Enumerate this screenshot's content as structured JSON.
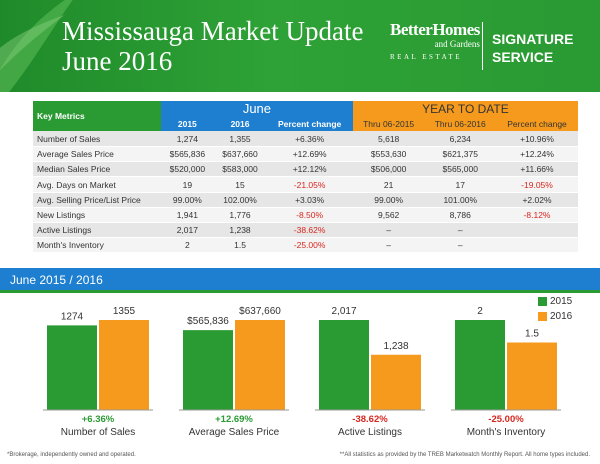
{
  "header": {
    "title_line1": "Mississauga Market Update",
    "title_line2": "June  2016",
    "brand_line1": "Better",
    "brand_line2": "Homes",
    "brand_line3": "and Gardens",
    "brand_line4": "REAL ESTATE",
    "signature_line1": "SIGNATURE",
    "signature_line2": "SERVICE"
  },
  "table": {
    "key_header": "Key Metrics",
    "june_header": "June",
    "ytd_header": "YEAR TO DATE",
    "subheaders": [
      "2015",
      "2016",
      "Percent change",
      "Thru 06-2015",
      "Thru 06-2016",
      "Percent change"
    ],
    "rows": [
      {
        "label": "Number of Sales",
        "cells": [
          "1,274",
          "1,355",
          "+6.36%",
          "5,618",
          "6,234",
          "+10.96%"
        ],
        "neg": [
          false,
          false,
          false,
          false,
          false,
          false
        ]
      },
      {
        "label": "Average Sales Price",
        "cells": [
          "$565,836",
          "$637,660",
          "+12.69%",
          "$553,630",
          "$621,375",
          "+12.24%"
        ],
        "neg": [
          false,
          false,
          false,
          false,
          false,
          false
        ]
      },
      {
        "label": "Median Sales Price",
        "cells": [
          "$520,000",
          "$583,000",
          "+12.12%",
          "$506,000",
          "$565,000",
          "+11.66%"
        ],
        "neg": [
          false,
          false,
          false,
          false,
          false,
          false
        ]
      },
      {
        "label": "Avg. Days on Market",
        "cells": [
          "19",
          "15",
          "-21.05%",
          "21",
          "17",
          "-19.05%"
        ],
        "neg": [
          false,
          false,
          true,
          false,
          false,
          true
        ]
      },
      {
        "label": "Avg. Selling Price/List Price",
        "cells": [
          "99.00%",
          "102.00%",
          "+3.03%",
          "99.00%",
          "101.00%",
          "+2.02%"
        ],
        "neg": [
          false,
          false,
          false,
          false,
          false,
          false
        ]
      },
      {
        "label": "New Listings",
        "cells": [
          "1,941",
          "1,776",
          "-8.50%",
          "9,562",
          "8,786",
          "-8.12%"
        ],
        "neg": [
          false,
          false,
          true,
          false,
          false,
          true
        ]
      },
      {
        "label": "Active Listings",
        "cells": [
          "2,017",
          "1,238",
          "-38.62%",
          "–",
          "–",
          ""
        ],
        "neg": [
          false,
          false,
          true,
          false,
          false,
          false
        ]
      },
      {
        "label": "Month's Inventory",
        "cells": [
          "2",
          "1.5",
          "-25.00%",
          "–",
          "–",
          ""
        ],
        "neg": [
          false,
          false,
          true,
          false,
          false,
          false
        ]
      }
    ]
  },
  "section_title": "June 2015 / 2016",
  "colors": {
    "green": "#2a9a33",
    "orange": "#f59a1c",
    "blue": "#1e7fd0",
    "red": "#d7261e"
  },
  "chart_data": [
    {
      "type": "bar",
      "title": "",
      "categories": [
        "Number of Sales"
      ],
      "series": [
        {
          "name": "2015",
          "values": [
            1274
          ]
        },
        {
          "name": "2016",
          "values": [
            1355
          ]
        }
      ],
      "value_labels": [
        "1274",
        "1355"
      ],
      "change": "+6.36%",
      "change_negative": false
    },
    {
      "type": "bar",
      "title": "",
      "categories": [
        "Average Sales Price"
      ],
      "series": [
        {
          "name": "2015",
          "values": [
            565836
          ]
        },
        {
          "name": "2016",
          "values": [
            637660
          ]
        }
      ],
      "value_labels": [
        "$565,836",
        "$637,660"
      ],
      "change": "+12.69%",
      "change_negative": false
    },
    {
      "type": "bar",
      "title": "",
      "categories": [
        "Active Listings"
      ],
      "series": [
        {
          "name": "2015",
          "values": [
            2017
          ]
        },
        {
          "name": "2016",
          "values": [
            1238
          ]
        }
      ],
      "value_labels": [
        "2,017",
        "1,238"
      ],
      "change": "-38.62%",
      "change_negative": true
    },
    {
      "type": "bar",
      "title": "",
      "categories": [
        "Month's Inventory"
      ],
      "series": [
        {
          "name": "2015",
          "values": [
            2
          ]
        },
        {
          "name": "2016",
          "values": [
            1.5
          ]
        }
      ],
      "value_labels": [
        "2",
        "1.5"
      ],
      "change": "-25.00%",
      "change_negative": true
    }
  ],
  "legend": [
    "2015",
    "2016"
  ],
  "footer": {
    "left": "*Brokerage, independently owned and operated.",
    "right": "**All statistics as provided by the TREB  Marketwatch Monthly Report. All home types included."
  }
}
